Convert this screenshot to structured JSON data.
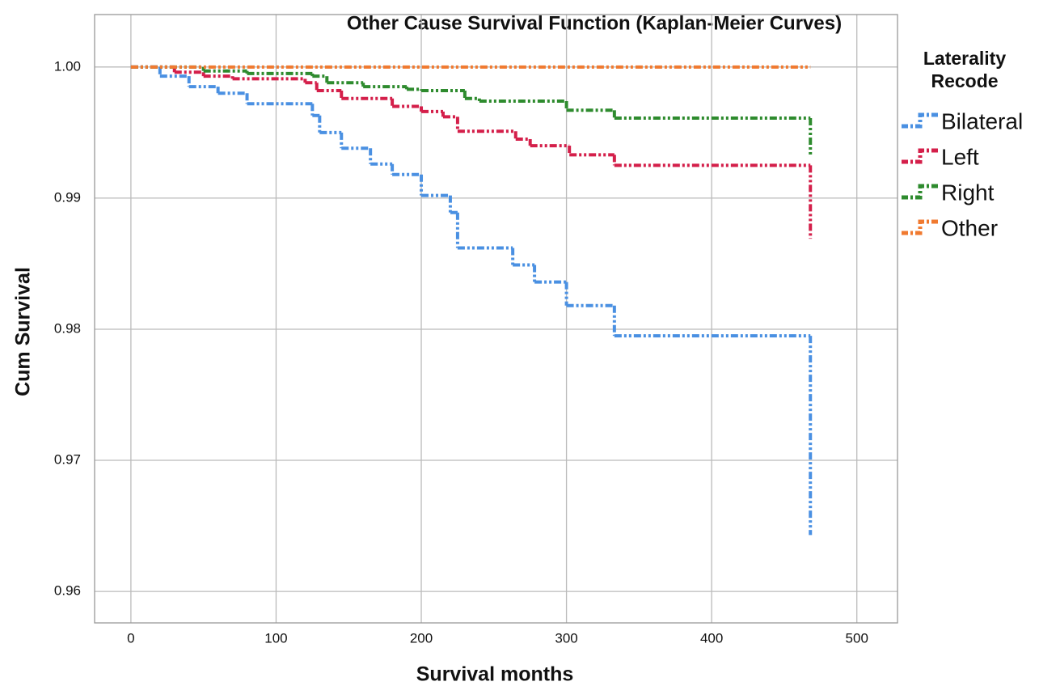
{
  "chart_data": {
    "type": "step",
    "title": "Other Cause Survival Function (Kaplan-Meier Curves)",
    "x_label": "Survival months",
    "y_label": "Cum Survival",
    "legend_title": "Laterality Recode",
    "legend_position": "right",
    "grid": true,
    "xlim": [
      -25,
      528
    ],
    "ylim": [
      0.9576,
      1.004
    ],
    "xticks": [
      0,
      100,
      200,
      300,
      400,
      500
    ],
    "yticks": [
      {
        "value": 1,
        "label": "1.00"
      },
      0.99,
      0.98,
      0.97,
      0.96
    ],
    "series": [
      {
        "name": "Bilateral",
        "color": "#4a90e2",
        "x": [
          0,
          20,
          40,
          60,
          80,
          125,
          130,
          145,
          165,
          180,
          200,
          220,
          225,
          263,
          278,
          300,
          333,
          468
        ],
        "values": [
          1,
          0.9993,
          0.9985,
          0.998,
          0.9972,
          0.9963,
          0.995,
          0.9938,
          0.9926,
          0.9918,
          0.9902,
          0.9889,
          0.9862,
          0.9849,
          0.9836,
          0.9818,
          0.9795,
          0.9643
        ]
      },
      {
        "name": "Left",
        "color": "#d41f4a",
        "x": [
          0,
          30,
          50,
          70,
          120,
          128,
          145,
          180,
          200,
          215,
          225,
          265,
          275,
          302,
          333,
          468
        ],
        "values": [
          1,
          0.9996,
          0.9993,
          0.9991,
          0.9988,
          0.9982,
          0.9976,
          0.997,
          0.9966,
          0.9962,
          0.9951,
          0.9945,
          0.994,
          0.9933,
          0.9925,
          0.9869
        ]
      },
      {
        "name": "Right",
        "color": "#2e8b2e",
        "x": [
          0,
          50,
          80,
          125,
          135,
          160,
          190,
          200,
          230,
          240,
          300,
          333,
          468
        ],
        "values": [
          1,
          0.9997,
          0.9995,
          0.9993,
          0.9988,
          0.9985,
          0.9983,
          0.9982,
          0.9976,
          0.9974,
          0.9967,
          0.9961,
          0.9932
        ]
      },
      {
        "name": "Other",
        "color": "#f07a30",
        "x": [
          0,
          468
        ],
        "values": [
          1,
          1
        ]
      }
    ]
  }
}
